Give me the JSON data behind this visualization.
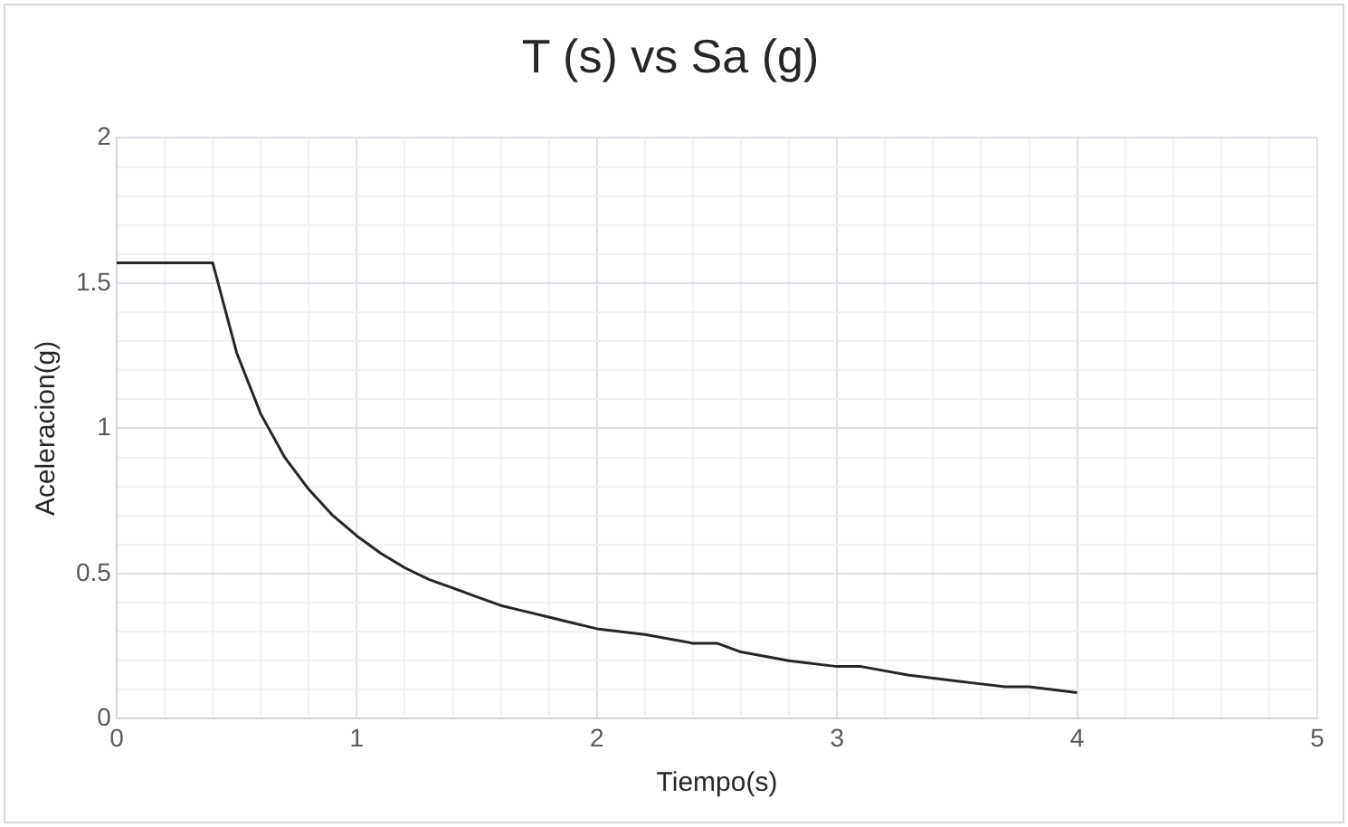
{
  "chart_data": {
    "type": "line",
    "title": "T (s) vs Sa (g)",
    "xlabel": "Tiempo(s)",
    "ylabel": "Aceleracion(g)",
    "x": [
      0,
      0.1,
      0.2,
      0.3,
      0.4,
      0.5,
      0.6,
      0.7,
      0.8,
      0.9,
      1,
      1.1,
      1.2,
      1.3,
      1.4,
      1.5,
      1.6,
      1.7,
      1.8,
      1.9,
      2,
      2.2,
      2.4,
      2.5,
      2.6,
      2.8,
      3,
      3.1,
      3.3,
      3.4,
      3.5,
      3.6,
      3.7,
      3.8,
      3.9,
      4
    ],
    "series": [
      {
        "color": "#262626",
        "values": [
          1.57,
          1.57,
          1.57,
          1.57,
          1.57,
          1.26,
          1.05,
          0.9,
          0.79,
          0.7,
          0.63,
          0.57,
          0.52,
          0.48,
          0.45,
          0.42,
          0.39,
          0.37,
          0.35,
          0.33,
          0.31,
          0.29,
          0.26,
          0.26,
          0.23,
          0.2,
          0.18,
          0.18,
          0.15,
          0.14,
          0.13,
          0.12,
          0.11,
          0.11,
          0.1,
          0.09
        ]
      }
    ],
    "xlim": [
      0,
      5
    ],
    "ylim": [
      0,
      2
    ],
    "xticks": [
      0,
      {
        "value": 0.2,
        "label": null
      },
      {
        "value": 0.4,
        "label": null
      },
      {
        "value": 0.6,
        "label": null
      },
      {
        "value": 0.8,
        "label": null
      },
      1,
      {
        "value": 1.2,
        "label": null
      },
      {
        "value": 1.4,
        "label": null
      },
      {
        "value": 1.6,
        "label": null
      },
      {
        "value": 1.8,
        "label": null
      },
      2,
      {
        "value": 2.2,
        "label": null
      },
      {
        "value": 2.4,
        "label": null
      },
      {
        "value": 2.6,
        "label": null
      },
      {
        "value": 2.8,
        "label": null
      },
      3,
      {
        "value": 3.2,
        "label": null
      },
      {
        "value": 3.4,
        "label": null
      },
      {
        "value": 3.6,
        "label": null
      },
      {
        "value": 3.8,
        "label": null
      },
      4,
      {
        "value": 4.2,
        "label": null
      },
      {
        "value": 4.4,
        "label": null
      },
      {
        "value": 4.6,
        "label": null
      },
      {
        "value": 4.8,
        "label": null
      },
      5
    ],
    "yticks": [
      0,
      {
        "value": 0.1,
        "label": null
      },
      {
        "value": 0.2,
        "label": null
      },
      {
        "value": 0.3,
        "label": null
      },
      {
        "value": 0.4,
        "label": null
      },
      0.5,
      {
        "value": 0.6,
        "label": null
      },
      {
        "value": 0.7,
        "label": null
      },
      {
        "value": 0.8,
        "label": null
      },
      {
        "value": 0.9,
        "label": null
      },
      1,
      {
        "value": 1.1,
        "label": null
      },
      {
        "value": 1.2,
        "label": null
      },
      {
        "value": 1.3,
        "label": null
      },
      {
        "value": 1.4,
        "label": null
      },
      1.5,
      {
        "value": 1.6,
        "label": null
      },
      {
        "value": 1.7,
        "label": null
      },
      {
        "value": 1.8,
        "label": null
      },
      {
        "value": 1.9,
        "label": null
      },
      2
    ],
    "grid": true,
    "marker": "none",
    "line_style": "solid"
  }
}
